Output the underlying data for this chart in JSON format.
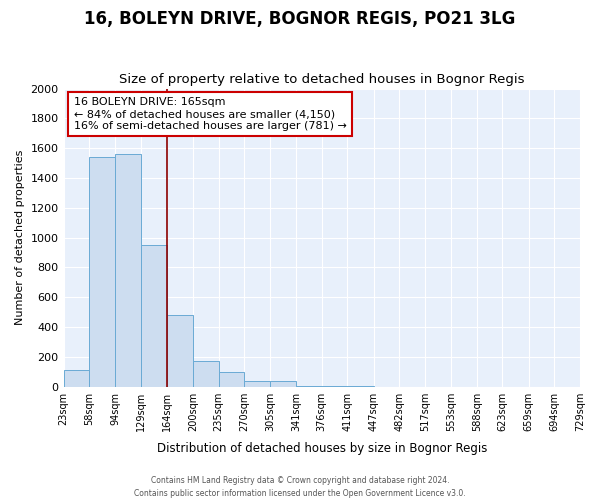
{
  "title1": "16, BOLEYN DRIVE, BOGNOR REGIS, PO21 3LG",
  "title2": "Size of property relative to detached houses in Bognor Regis",
  "xlabel": "Distribution of detached houses by size in Bognor Regis",
  "ylabel": "Number of detached properties",
  "footer1": "Contains HM Land Registry data © Crown copyright and database right 2024.",
  "footer2": "Contains public sector information licensed under the Open Government Licence v3.0.",
  "annotation_line1": "16 BOLEYN DRIVE: 165sqm",
  "annotation_line2": "← 84% of detached houses are smaller (4,150)",
  "annotation_line3": "16% of semi-detached houses are larger (781) →",
  "bar_edges": [
    23,
    58,
    94,
    129,
    164,
    200,
    235,
    270,
    305,
    341,
    376,
    411,
    447,
    482,
    517,
    553,
    588,
    623,
    659,
    694,
    729
  ],
  "bar_heights": [
    110,
    1540,
    1560,
    950,
    480,
    175,
    100,
    35,
    35,
    5,
    3,
    2,
    0,
    0,
    0,
    0,
    0,
    0,
    0,
    0
  ],
  "bar_color": "#cdddf0",
  "bar_edge_color": "#6aaad4",
  "red_line_x": 164,
  "ylim": [
    0,
    2000
  ],
  "yticks": [
    0,
    200,
    400,
    600,
    800,
    1000,
    1200,
    1400,
    1600,
    1800,
    2000
  ],
  "background_color": "#e8f0fb",
  "grid_color": "#ffffff",
  "title1_fontsize": 12,
  "title2_fontsize": 9.5,
  "tick_labels": [
    "23sqm",
    "58sqm",
    "94sqm",
    "129sqm",
    "164sqm",
    "200sqm",
    "235sqm",
    "270sqm",
    "305sqm",
    "341sqm",
    "376sqm",
    "411sqm",
    "447sqm",
    "482sqm",
    "517sqm",
    "553sqm",
    "588sqm",
    "623sqm",
    "659sqm",
    "694sqm",
    "729sqm"
  ]
}
